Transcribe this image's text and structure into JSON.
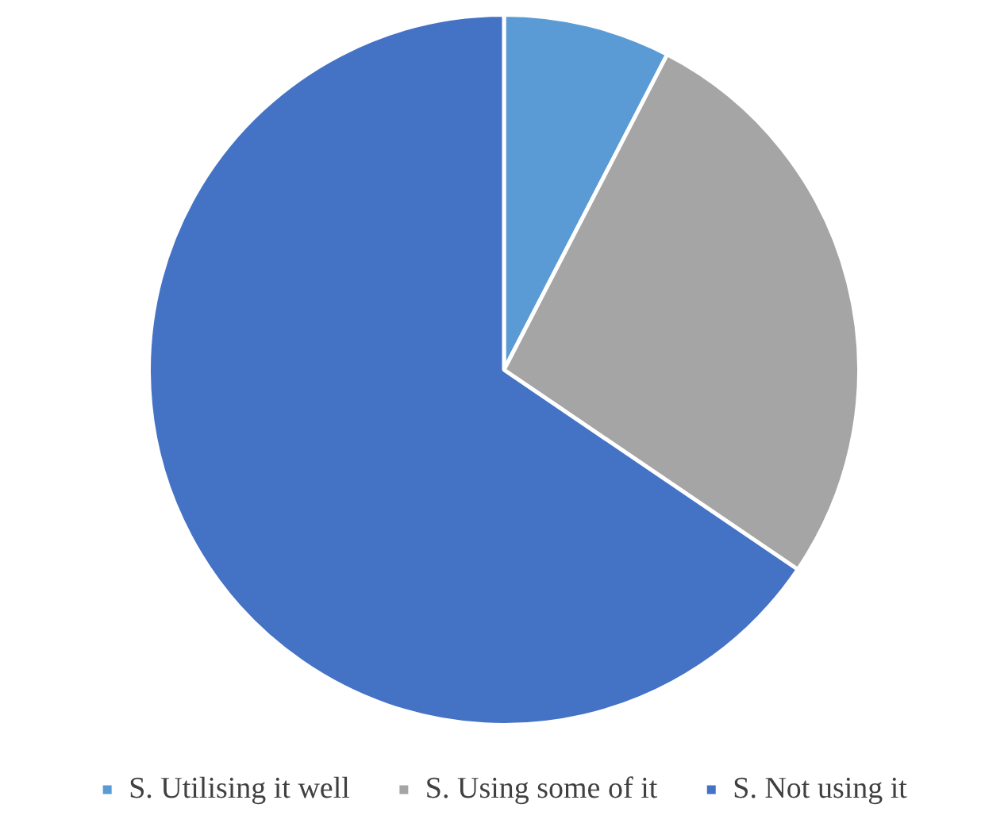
{
  "chart_data": {
    "type": "pie",
    "categories": [
      "S. Utilising it well",
      "S. Using some of it",
      "S. Not using it"
    ],
    "values": [
      7.6,
      26.9,
      65.5
    ],
    "colors": [
      "#5b9bd5",
      "#a5a5a5",
      "#4472c4"
    ],
    "legend": "bottom"
  }
}
